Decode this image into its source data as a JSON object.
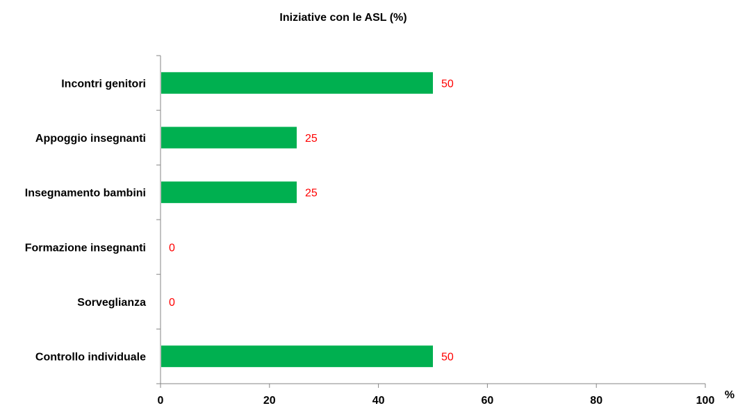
{
  "chart_data": {
    "type": "bar",
    "orientation": "horizontal",
    "title": "Iniziative con le ASL (%)",
    "xlabel": "%",
    "ylabel": "",
    "categories": [
      "Incontri genitori",
      "Appoggio insegnanti",
      "Insegnamento bambini",
      "Formazione insegnanti",
      "Sorveglianza",
      "Controllo individuale"
    ],
    "values": [
      50,
      25,
      25,
      0,
      0,
      50
    ],
    "data_labels": [
      "50",
      "25",
      "25",
      "0",
      "0",
      "50"
    ],
    "xlim": [
      0,
      100
    ],
    "x_ticks": [
      "0",
      "20",
      "40",
      "60",
      "80",
      "100"
    ],
    "grid": false,
    "legend": "none",
    "colors": {
      "bar": "#00b050",
      "data_label": "#ff0000",
      "axis": "#868686",
      "text": "#000000"
    }
  }
}
